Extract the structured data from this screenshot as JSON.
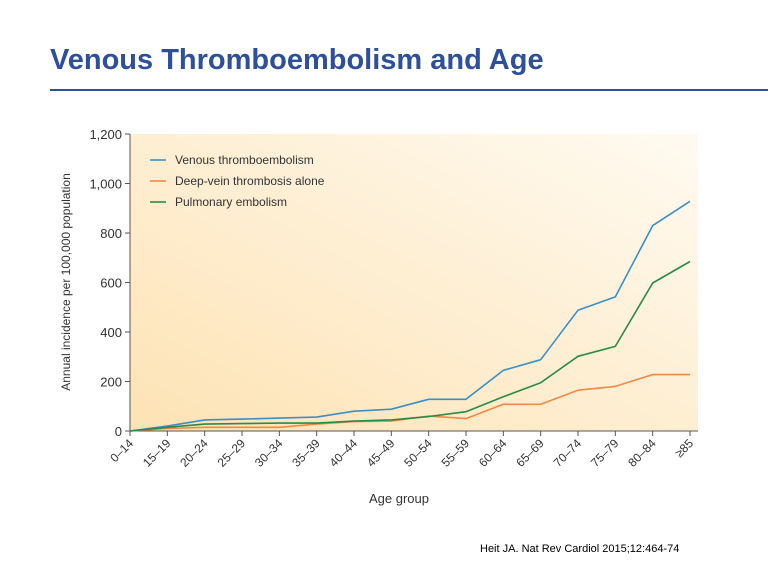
{
  "slide": {
    "title": "Venous Thromboembolism and Age",
    "citation": "Heit JA. Nat Rev Cardiol 2015;12:464-74"
  },
  "colors": {
    "title": "#2e4f9c",
    "venous_thromboembolism": "#3a8fc7",
    "deep_vein_thrombosis": "#ee8a46",
    "pulmonary_embolism": "#2a8a48",
    "plot_gradient_light": "#fffaf1",
    "plot_gradient_dark": "#fde3b4"
  },
  "chart_data": {
    "type": "line",
    "title": "",
    "xlabel": "Age group",
    "ylabel": "Annual incidence per 100,000 population",
    "ylim": [
      0,
      1200
    ],
    "yticks": [
      0,
      200,
      400,
      600,
      800,
      1000,
      1200
    ],
    "ytick_labels": [
      "0",
      "200",
      "400",
      "600",
      "800",
      "1,000",
      "1,200"
    ],
    "categories": [
      "0–14",
      "15–19",
      "20–24",
      "25–29",
      "30–34",
      "35–39",
      "40–44",
      "45–49",
      "50–54",
      "55–59",
      "60–64",
      "65–69",
      "70–74",
      "75–79",
      "80–84",
      "≥85"
    ],
    "grid": false,
    "legend_position": "top-left",
    "series": [
      {
        "name": "Venous thromboembolism",
        "color": "#3a8fc7",
        "values": [
          0,
          20,
          45,
          48,
          52,
          56,
          80,
          88,
          128,
          128,
          245,
          288,
          488,
          542,
          830,
          928
        ]
      },
      {
        "name": "Deep-vein thrombosis alone",
        "color": "#ee8a46",
        "values": [
          0,
          10,
          15,
          15,
          15,
          28,
          38,
          40,
          60,
          50,
          108,
          108,
          165,
          180,
          228,
          228
        ]
      },
      {
        "name": "Pulmonary embolism",
        "color": "#2a8a48",
        "values": [
          0,
          15,
          28,
          30,
          32,
          32,
          40,
          45,
          58,
          78,
          138,
          195,
          302,
          342,
          598,
          685
        ]
      }
    ]
  }
}
